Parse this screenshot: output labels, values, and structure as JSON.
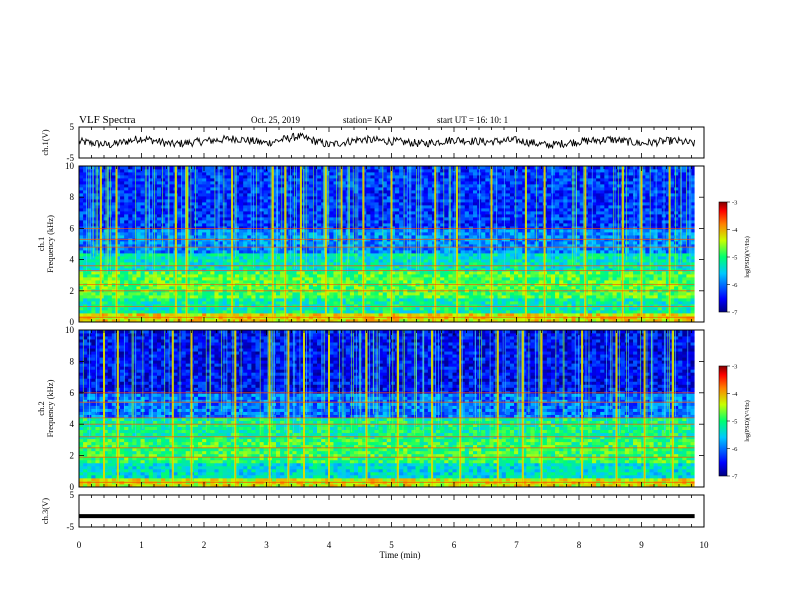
{
  "header": {
    "title": "VLF Spectra",
    "date": "Oct. 25, 2019",
    "station": "station= KAP",
    "start": "start  UT =   16: 10: 1"
  },
  "chart_data": [
    {
      "type": "line",
      "panel": "ch1-waveform",
      "ylabel": "ch.1(V)",
      "ylim": [
        -5,
        5
      ],
      "yticks": [
        "5",
        "-5"
      ],
      "xlim": [
        0,
        9.85
      ],
      "x": [
        0,
        0.5,
        1,
        1.5,
        2,
        2.5,
        3,
        3.5,
        4,
        4.5,
        5,
        5.5,
        6,
        6.5,
        7,
        7.5,
        8,
        8.5,
        9,
        9.5,
        9.85
      ],
      "values": [
        0.3,
        -0.8,
        1.4,
        -0.6,
        0.4,
        1.3,
        -0.2,
        2.0,
        -0.8,
        1.0,
        0.4,
        -0.4,
        0.9,
        0.2,
        0.7,
        -0.9,
        0.3,
        1.0,
        -0.3,
        0.6,
        -0.4
      ],
      "color": "#000000"
    },
    {
      "type": "heatmap",
      "panel": "ch1-spectrogram",
      "ylabel": "ch.1\nFrequency (kHz)",
      "ylim": [
        0,
        10
      ],
      "yticks": [
        "0",
        "2",
        "4",
        "6",
        "8",
        "10"
      ],
      "xlim": [
        0,
        10
      ],
      "colorbar": {
        "label": "log(PSD)(V²/Hz)",
        "range": [
          -7,
          -3
        ],
        "ticks": [
          "-3",
          "-4",
          "-5",
          "-6",
          "-7"
        ]
      },
      "bands_khz": [
        {
          "f0": 0,
          "f1": 0.5,
          "level": -4.2
        },
        {
          "f0": 0.5,
          "f1": 1.5,
          "level": -5.2
        },
        {
          "f0": 1.5,
          "f1": 3.2,
          "level": -4.8
        },
        {
          "f0": 3.2,
          "f1": 4.5,
          "level": -5.3
        },
        {
          "f0": 4.5,
          "f1": 6,
          "level": -5.9
        },
        {
          "f0": 6,
          "f1": 10,
          "level": -6.3
        }
      ],
      "lines_khz": [
        0.3,
        1.0,
        2.0,
        2.4,
        3.3,
        3.6,
        4.8,
        5.3,
        6.0
      ],
      "broadband_spikes_min": [
        0.35,
        0.6,
        1.55,
        1.72,
        2.45,
        3.1,
        3.3,
        3.55,
        3.95,
        4.2,
        4.55,
        5.0,
        5.7,
        6.05,
        6.6,
        7.15,
        7.45,
        8.1,
        8.7,
        9.0,
        9.45
      ]
    },
    {
      "type": "heatmap",
      "panel": "ch2-spectrogram",
      "ylabel": "ch.2\nFrequency (kHz)",
      "ylim": [
        0,
        10
      ],
      "yticks": [
        "0",
        "2",
        "4",
        "6",
        "8",
        "10"
      ],
      "xlim": [
        0,
        10
      ],
      "colorbar": {
        "label": "log(PSD)(V²/Hz)",
        "range": [
          -7,
          -3
        ],
        "ticks": [
          "-3",
          "-4",
          "-5",
          "-6",
          "-7"
        ]
      },
      "bands_khz": [
        {
          "f0": 0,
          "f1": 0.5,
          "level": -4.3
        },
        {
          "f0": 0.5,
          "f1": 1.5,
          "level": -5.4
        },
        {
          "f0": 1.5,
          "f1": 3.0,
          "level": -4.9
        },
        {
          "f0": 3.0,
          "f1": 4.5,
          "level": -5.1
        },
        {
          "f0": 4.5,
          "f1": 6,
          "level": -6.0
        },
        {
          "f0": 6,
          "f1": 10,
          "level": -6.5
        }
      ],
      "lines_khz": [
        0.3,
        1.9,
        2.5,
        3.2,
        4.0,
        4.4,
        5.4,
        6.0
      ],
      "broadband_spikes_min": [
        0.4,
        0.62,
        1.5,
        1.8,
        2.5,
        3.05,
        3.35,
        3.6,
        4.0,
        4.6,
        5.1,
        5.65,
        6.1,
        6.7,
        7.1,
        7.4,
        8.05,
        8.6,
        9.05,
        9.5
      ]
    },
    {
      "type": "line",
      "panel": "ch3-waveform",
      "ylabel": "ch.3(V)",
      "ylim": [
        -5,
        5
      ],
      "yticks": [
        "5",
        "-5"
      ],
      "xlim": [
        0,
        9.85
      ],
      "x": [
        0,
        9.85
      ],
      "values": [
        -1.6,
        -1.6
      ],
      "color": "#000000"
    }
  ],
  "xaxis": {
    "label": "Time (min)",
    "range": [
      0,
      10
    ],
    "ticks": [
      "0",
      "1",
      "2",
      "3",
      "4",
      "5",
      "6",
      "7",
      "8",
      "9",
      "10"
    ]
  },
  "colors": {
    "frame": "#000000",
    "background": "#ffffff"
  }
}
